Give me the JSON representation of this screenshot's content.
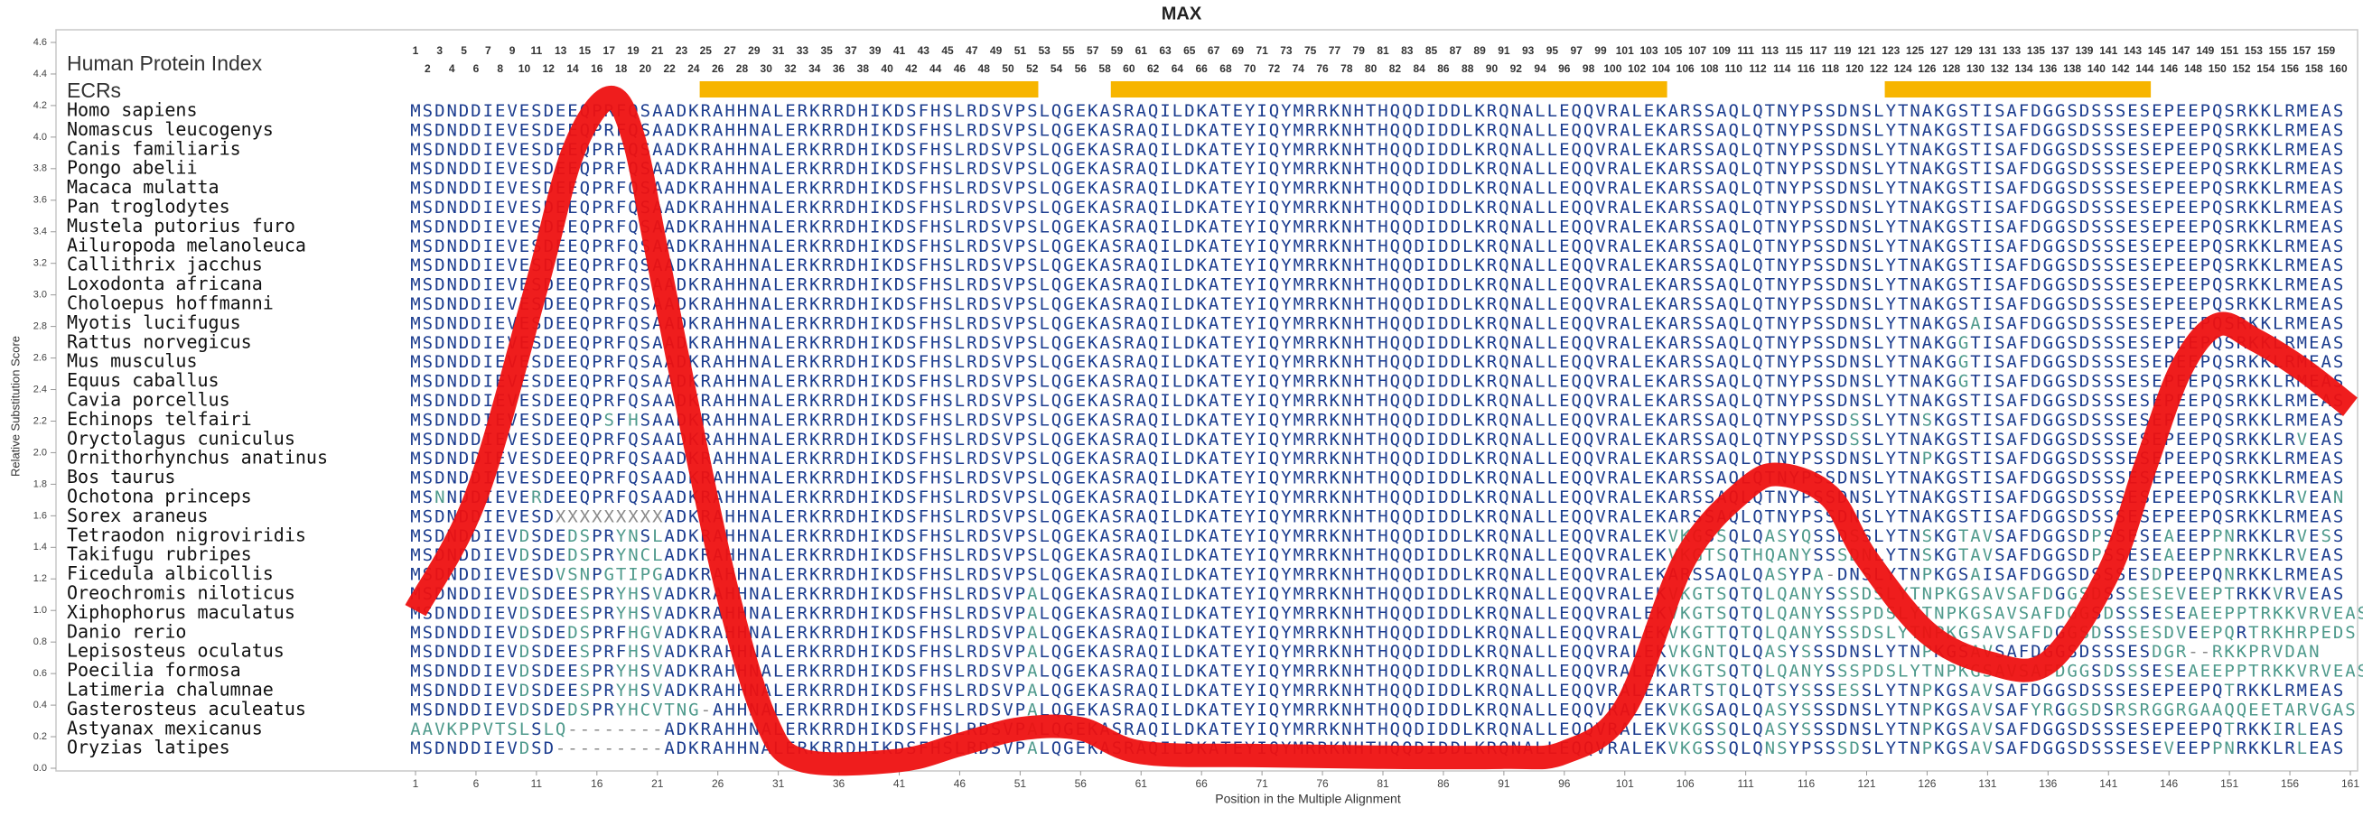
{
  "chart_data": {
    "type": "line",
    "title": "MAX",
    "xlabel": "Position in the Multiple Alignment",
    "ylabel": "Relative Substitution Score",
    "xlim": [
      1,
      161
    ],
    "ylim": [
      0,
      4.6
    ],
    "xticks": [
      1,
      6,
      11,
      16,
      21,
      26,
      31,
      36,
      41,
      46,
      51,
      56,
      61,
      66,
      71,
      76,
      81,
      86,
      91,
      96,
      101,
      106,
      111,
      116,
      121,
      126,
      131,
      136,
      141,
      146,
      151,
      156,
      161
    ],
    "yticks": [
      {
        "value": 0,
        "label": "0.0"
      },
      0.2,
      0.4,
      0.6,
      0.8,
      {
        "value": 1,
        "label": "1.0"
      },
      1.2,
      1.4,
      1.6,
      1.8,
      {
        "value": 2,
        "label": "2.0"
      },
      2.2,
      2.4,
      2.6,
      2.8,
      {
        "value": 3,
        "label": "3.0"
      },
      3.2,
      3.4,
      3.6,
      3.8,
      {
        "value": 4,
        "label": "4.0"
      },
      4.2,
      4.4,
      4.6
    ],
    "color": "#ee1111",
    "x": [
      1,
      6,
      11,
      14,
      17,
      19,
      21,
      24,
      27,
      30,
      33,
      41,
      46,
      51,
      56,
      61,
      71,
      81,
      91,
      96,
      101,
      106,
      111,
      114,
      118,
      121,
      126,
      131,
      136,
      141,
      144,
      147,
      150,
      153,
      157,
      161
    ],
    "values": [
      1.0,
      1.72,
      3.05,
      3.9,
      4.25,
      4.0,
      3.25,
      2.1,
      1.05,
      0.3,
      0.05,
      0.05,
      0.15,
      0.25,
      0.25,
      0.1,
      0.08,
      0.07,
      0.07,
      0.1,
      0.38,
      1.33,
      1.77,
      1.86,
      1.72,
      1.33,
      0.86,
      0.67,
      0.67,
      1.24,
      1.9,
      2.53,
      2.81,
      2.72,
      2.53,
      2.29
    ],
    "alignment": {
      "index_label": "Human Protein Index",
      "ecr_label": "ECRs",
      "ecr_color": "#f7b500",
      "ecrs": [
        {
          "start": 25,
          "end": 52
        },
        {
          "start": 59,
          "end": 104
        },
        {
          "start": 123,
          "end": 144
        }
      ],
      "positions": [
        1,
        2,
        3,
        4,
        5,
        6,
        7,
        8,
        9,
        10,
        11,
        12,
        13,
        14,
        15,
        16,
        17,
        18,
        19,
        20,
        21,
        22,
        23,
        24,
        25,
        26,
        27,
        28,
        29,
        30,
        31,
        32,
        33,
        34,
        35,
        36,
        37,
        38,
        39,
        40,
        41,
        42,
        43,
        44,
        45,
        46,
        47,
        48,
        49,
        50,
        51,
        52,
        53,
        54,
        55,
        56,
        57,
        58,
        59,
        60,
        61,
        62,
        63,
        64,
        65,
        66,
        67,
        68,
        69,
        70,
        71,
        72,
        73,
        74,
        75,
        76,
        77,
        78,
        79,
        80,
        81,
        82,
        83,
        84,
        85,
        86,
        87,
        88,
        89,
        90,
        91,
        92,
        93,
        94,
        95,
        96,
        97,
        98,
        99,
        100,
        101,
        102,
        103,
        104,
        105,
        106,
        107,
        108,
        109,
        110,
        111,
        112,
        113,
        114,
        115,
        116,
        117,
        118,
        119,
        120,
        121,
        122,
        123,
        124,
        125,
        126,
        127,
        128,
        129,
        130,
        131,
        132,
        133,
        134,
        135,
        136,
        137,
        138,
        139,
        140,
        141,
        142,
        143,
        144,
        145,
        146,
        147,
        148,
        149,
        150,
        151,
        152,
        153,
        154,
        155,
        156,
        157,
        158,
        159,
        160
      ],
      "rows": [
        {
          "species": "Homo sapiens",
          "sequence": "MSDNDDIEVESDEEQPRFQSAADKRAHHNALERKRRDHIKDSFHSLRDSVPSLQGEKASRAQILDKATEYIQYMRRKNHTHQQDIDDLKRQNALLEQQVRALEKARSSAQLQTNYPSSDNSLYTNAKGSTISAFDGGSDSSSESEPEEPQSRKKLRMEAS"
        },
        {
          "species": "Nomascus leucogenys",
          "sequence": "MSDNDDIEVESDEEQPRFQSAADKRAHHNALERKRRDHIKDSFHSLRDSVPSLQGEKASRAQILDKATEYIQYMRRKNHTHQQDIDDLKRQNALLEQQVRALEKARSSAQLQTNYPSSDNSLYTNAKGSTISAFDGGSDSSSESEPEEPQSRKKLRMEAS"
        },
        {
          "species": "Canis familiaris",
          "sequence": "MSDNDDIEVESDEEQPRFQSAADKRAHHNALERKRRDHIKDSFHSLRDSVPSLQGEKASRAQILDKATEYIQYMRRKNHTHQQDIDDLKRQNALLEQQVRALEKARSSAQLQTNYPSSDNSLYTNAKGSTISAFDGGSDSSSESEPEEPQSRKKLRMEAS"
        },
        {
          "species": "Pongo abelii",
          "sequence": "MSDNDDIEVESDEEQPRFQSAADKRAHHNALERKRRDHIKDSFHSLRDSVPSLQGEKASRAQILDKATEYIQYMRRKNHTHQQDIDDLKRQNALLEQQVRALEKARSSAQLQTNYPSSDNSLYTNAKGSTISAFDGGSDSSSESEPEEPQSRKKLRMEAS"
        },
        {
          "species": "Macaca mulatta",
          "sequence": "MSDNDDIEVESDEEQPRFQSAADKRAHHNALERKRRDHIKDSFHSLRDSVPSLQGEKASRAQILDKATEYIQYMRRKNHTHQQDIDDLKRQNALLEQQVRALEKARSSAQLQTNYPSSDNSLYTNAKGSTISAFDGGSDSSSESEPEEPQSRKKLRMEAS"
        },
        {
          "species": "Pan troglodytes",
          "sequence": "MSDNDDIEVESDEEQPRFQSAADKRAHHNALERKRRDHIKDSFHSLRDSVPSLQGEKASRAQILDKATEYIQYMRRKNHTHQQDIDDLKRQNALLEQQVRALEKARSSAQLQTNYPSSDNSLYTNAKGSTISAFDGGSDSSSESEPEEPQSRKKLRMEAS"
        },
        {
          "species": "Mustela putorius furo",
          "sequence": "MSDNDDIEVESDEEQPRFQSAADKRAHHNALERKRRDHIKDSFHSLRDSVPSLQGEKASRAQILDKATEYIQYMRRKNHTHQQDIDDLKRQNALLEQQVRALEKARSSAQLQTNYPSSDNSLYTNAKGSTISAFDGGSDSSSESEPEEPQSRKKLRMEAS"
        },
        {
          "species": "Ailuropoda melanoleuca",
          "sequence": "MSDNDDIEVESDEEQPRFQSAADKRAHHNALERKRRDHIKDSFHSLRDSVPSLQGEKASRAQILDKATEYIQYMRRKNHTHQQDIDDLKRQNALLEQQVRALEKARSSAQLQTNYPSSDNSLYTNAKGSTISAFDGGSDSSSESEPEEPQSRKKLRMEAS"
        },
        {
          "species": "Callithrix jacchus",
          "sequence": "MSDNDDIEVESDEEQPRFQSAADKRAHHNALERKRRDHIKDSFHSLRDSVPSLQGEKASRAQILDKATEYIQYMRRKNHTHQQDIDDLKRQNALLEQQVRALEKARSSAQLQTNYPSSDNSLYTNAKGSTISAFDGGSDSSSESEPEEPQSRKKLRMEAS"
        },
        {
          "species": "Loxodonta africana",
          "sequence": "MSDNDDIEVESDEEQPRFQSAADKRAHHNALERKRRDHIKDSFHSLRDSVPSLQGEKASRAQILDKATEYIQYMRRKNHTHQQDIDDLKRQNALLEQQVRALEKARSSAQLQTNYPSSDNSLYTNAKGSTISAFDGGSDSSSESEPEEPQSRKKLRMEAS"
        },
        {
          "species": "Choloepus hoffmanni",
          "sequence": "MSDNDDIEVESDEEQPRFQSAADKRAHHNALERKRRDHIKDSFHSLRDSVPSLQGEKASRAQILDKATEYIQYMRRKNHTHQQDIDDLKRQNALLEQQVRALEKARSSAQLQTNYPSSDNSLYTNAKGSTISAFDGGSDSSSESEPEEPQSRKKLRMEAS"
        },
        {
          "species": "Myotis lucifugus",
          "sequence": "MSDNDDIEVESDEEQPRFQSAADKRAHHNALERKRRDHIKDSFHSLRDSVPSLQGEKASRAQILDKATEYIQYMRRKNHTHQQDIDDLKRQNALLEQQVRALEKARSSAQLQTNYPSSDNSLYTNAKGSAISAFDGGSDSSSESEPEEPQSRKKLRMEAS"
        },
        {
          "species": "Rattus norvegicus",
          "sequence": "MSDNDDIEVESDEEQPRFQSAADKRAHHNALERKRRDHIKDSFHSLRDSVPSLQGEKASRAQILDKATEYIQYMRRKNHTHQQDIDDLKRQNALLEQQVRALEKARSSAQLQTNYPSSDNSLYTNAKGGTISAFDGGSDSSSESEPEEPQSRKKLRMEAS"
        },
        {
          "species": "Mus musculus",
          "sequence": "MSDNDDIEVESDEEQPRFQSAADKRAHHNALERKRRDHIKDSFHSLRDSVPSLQGEKASRAQILDKATEYIQYMRRKNHTHQQDIDDLKRQNALLEQQVRALEKARSSAQLQTNYPSSDNSLYTNAKGGTISAFDGGSDSSSESEPEEPQSRKKLRMEAS"
        },
        {
          "species": "Equus caballus",
          "sequence": "MSDNDDIEVESDEEQPRFQSAADKRAHHNALERKRRDHIKDSFHSLRDSVPSLQGEKASRAQILDKATEYIQYMRRKNHTHQQDIDDLKRQNALLEQQVRALEKARSSAQLQTNYPSSDNSLYTNAKGGTISAFDGGSDSSSESEPEEPQSRKKLRMEAS"
        },
        {
          "species": "Cavia porcellus",
          "sequence": "MSDNDDIEVESDEEQPRFQSAADKRAHHNALERKRRDHIKDSFHSLRDSVPSLQGEKASRAQILDKATEYIQYMRRKNHTHQQDIDDLKRQNALLEQQVRALEKARSSAQLQTNYPSSDNSLYTNAKGSTISAFDGGSDSSSESEPEEPQSRKKLRMEAS"
        },
        {
          "species": "Echinops telfairi",
          "sequence": "MSDNDDIEVESDEEQPSFHSAADKRAHHNALERKRRDHIKDSFHSLRDSVPSLQGEKASRAQILDKATEYIQYMRRKNHTHQQDIDDLKRQNALLEQQVRALEKARSSAQLQTNYPSSDSSLYTNSKGSTISAFDGGSDSSSESEPEEPQSRKKLRMEAS"
        },
        {
          "species": "Oryctolagus cuniculus",
          "sequence": "MSDNDDIEVESDEEQPRFQSAADKRAHHNALERKRRDHIKDSFHSLRDSVPSLQGEKASRAQILDKATEYIQYMRRKNHTHQQDIDDLKRQNALLEQQVRALEKARSSAQLQTNYPSSDSSLYTNAKGSTISAFDGGSDSSSESEPEEPQSRKKLRVEAS"
        },
        {
          "species": "Ornithorhynchus anatinus",
          "sequence": "MSDNDDIEVESDEEQPRFQSAADKRAHHNALERKRRDHIKDSFHSLRDSVPSLQGEKASRAQILDKATEYIQYMRRKNHTHQQDIDDLKRQNALLEQQVRALEKARSSAQLQTNYPSSDNSLYTNPKGSTISAFDGGSDSSSESEPEEPQSRKKLRMEAS"
        },
        {
          "species": "Bos taurus",
          "sequence": "MSDNDDIEVESDEEQPRFQSAADKRAHHNALERKRRDHIKDSFHSLRDSVPSLQGEKASRAQILDKATEYIQYMRRKNHTHQQDIDDLKRQNALLEQQVRALEKARSSAQLQTNYPSSDNSLYTNAKGSTISAFDGGSDSSSESEPEEPQSRKKLRMEAS"
        },
        {
          "species": "Ochotona princeps",
          "sequence": "MSNNDDIEVERDEEQPRFQSAADKRAHHNALERKRRDHIKDSFHSLRDSVPSLQGEKASRAQILDKATEYIQYMRRKNHTHQQDIDDLKRQNALLEQQVRALEKARSSAQLQTNYPSSDNSLYTNAKGSTISAFDGGSDSSSESEPEEPQSRKKLRVEAN"
        },
        {
          "species": "Sorex araneus",
          "sequence": "MSDNDDIEVESDXXXXXXXXXADKRAHHNALERKRRDHIKDSFHSLRDSVPSLQGEKASRAQILDKATEYIQYMRRKNHTHQQDIDDLKRQNALLEQQVRALEKARSSAQLQTNYPSSDNSLYTNAKGSTISAFDGGSDSSSESEPEEPQSRKKLRMEAS"
        },
        {
          "species": "Tetraodon nigroviridis",
          "sequence": "MSDNDDIEVDSDEDSPRYNSLADKRAHHNALERKRRDHIKDSFHSLRDSVPSLQGEKASRAQILDKATEYIQYMRRKNHTHQQDIDDLKRQNALLEQQVRALEKVKGSSQLQASYQSSDSSLYTNSKGTAVSAFDGGSDPSSESEAEEPPNRKKLRVESS"
        },
        {
          "species": "Takifugu rubripes",
          "sequence": "MSDNDDIEVDSDEDSPRYNCLADKRAHHNALERKRRDHIKDSFHSLRDSVPSLQGEKASRAQILDKATEYIQYMRRKNHTHQQDIDDLKRQNALLEQQVRALEKVKGTSQTHQANYSSSDNLYTNSKGTAVSAFDGGSDPSSESEAEEPPNRKKLRVEAS"
        },
        {
          "species": "Ficedula albicollis",
          "sequence": "MSDNDDIEVESDVSNPGTIPGADKRAHHNALERKRRDHIKDSFHSLRDSVPSLQGEKASRAQILDKATEYIQYMRRKNHTHQQDIDDLKRQNALLEQQVRALEKARSSAQLQASYPA-DNSLYTNPKGSAISAFDGGSDSSSESDPEEPQNRKKLRMEAS"
        },
        {
          "species": "Oreochromis niloticus",
          "sequence": "MSDNDDIEVDSDEESPRYHSVADKRAHHNALERKRRDHIKDSFHSLRDSVPALQGEKASRAQILDKATEYIQYMRRKNHTHQQDIDDLKRQNALLEQQVRALEKVKGTSQTQLQANYSSSDSLYTNPKGSAVSAFDGGSDSSSESEVEEPTRKKVRVEAS"
        },
        {
          "species": "Xiphophorus maculatus",
          "sequence": "MSDNDDIEVDSDEESPRYHSVADKRAHHNALERKRRDHIKDSFHSLRDSVPALQGEKASRAQILDKATEYIQYMRRKNHTHQQDIDDLKRQNALLEQQVRALEKVKGTSQTQLQANYSSSPDSLYTNPKGSAVSAFDGGSDSSSESEAEEPPTRKKVRVEAS"
        },
        {
          "species": "Danio rerio",
          "sequence": "MSDNDDIEVDSDEDSPRFHGVADKRAHHNALERKRRDHIKDSFHSLRDSVPALQGEKASRAQILDKATEYIQYMRRKNHTHQQDIDDLKRQNALLEQQVRALEKVKGTTQTQLQANYSSSDSLYTNPKGSAVSAFDGGSDSSSESDVEEPQRTRKHRPEDS"
        },
        {
          "species": "Lepisosteus oculatus",
          "sequence": "MSDNDDIEVDSDEESPRFHSVADKRAHHNALERKRRDHIKDSFHSLRDSVPALQGEKASRAQILDKATEYIQYMRRKNHTHQQDIDDLKRQNALLEQQVRALEKVKGNTQLQASYSSSDNSLYTNPKGSAVSAFDGGSDSSSESDGR--RKKPRVDAN"
        },
        {
          "species": "Poecilia formosa",
          "sequence": "MSDNDDIEVDSDEESPRYHSVADKRAHHNALERKRRDHIKDSFHSLRDSVPALQGEKASRAQILDKATEYIQYMRRKNHTHQQDIDDLKRQNALLEQQVRALEKVKGTSQTQLQANYSSSPDSLYTNPKGSAVSAFDGGSDSSSESEAEEPPTRKKVRVEAS"
        },
        {
          "species": "Latimeria chalumnae",
          "sequence": "MSDNDDIEVDSDEESPRYHSVADKRAHHNALERKRRDHIKDSFHSLRDSVPALQGEKASRAQILDKATEYIQYMRRKNHTHQQDIDDLKRQNALLEQQVRALEKARTSTQLQTSYSSSESSLYTNPKGSAVSAFDGGSDSSSESEPEEPQTRKKLRMEAS"
        },
        {
          "species": "Gasterosteus aculeatus",
          "sequence": "MSDNDDIEVDSDEDSPRYHCVTNG-AHHNALERKRRDHIKDSFHSLRDSVPALQGEKASRAQILDKATEYIQYMRRKNHTHQQDIDDLKRQNALLEQQVRALEKVKGSAQLQASYSSSDNSLYTNPKGSAVSAFYRGGSDSRSRGGRGAAQQEETARVGAS"
        },
        {
          "species": "Astyanax mexicanus",
          "sequence": "AAVKPPVTSLSLQ--------ADKRAHHNALERKRRDHIKDSFHSLRDSVPALQGEKASRAQILDKATEYIQYMRRKNHTHQQDIDDLKRQNALLEQQVRALEKVKGSSQLQASYSSSDNSLYTNPKGSAVSAFDGGSDSSSESEPEEPQTRKKIRLEAS"
        },
        {
          "species": "Oryzias latipes",
          "sequence": "MSDNDDIEVDSD---------ADKRAHHNALERKRRDHIKDSFHSLRDSVPALQGEKASRAQILDKATEYIQYMRRKNHTHQQDIDDLKRQNALLEQQVRALEKVKGSSQLQNSYPSSSDSLYTNPKGSAVSAFDGGSDSSSESEVEEPPNRKKLRLEAS"
        }
      ]
    }
  }
}
